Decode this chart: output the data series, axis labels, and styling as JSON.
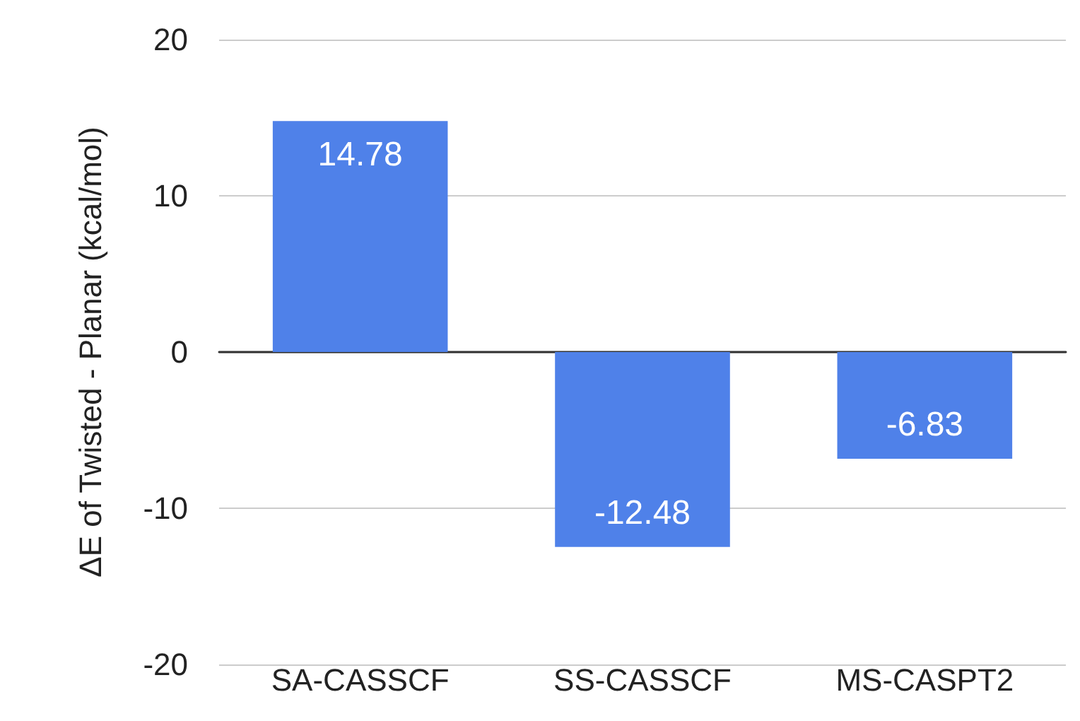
{
  "chart_data": {
    "type": "bar",
    "ylabel": "ΔE of Twisted - Planar (kcal/mol)",
    "categories": [
      "SA-CASSCF",
      "SS-CASSCF",
      "MS-CASPT2"
    ],
    "values": [
      14.78,
      -12.48,
      -6.83
    ],
    "color": "#4f81e9",
    "ylim": [
      -20,
      20
    ],
    "yticks": [
      -20,
      -10,
      0,
      10,
      20
    ],
    "grid": "y",
    "data_labels": true
  }
}
